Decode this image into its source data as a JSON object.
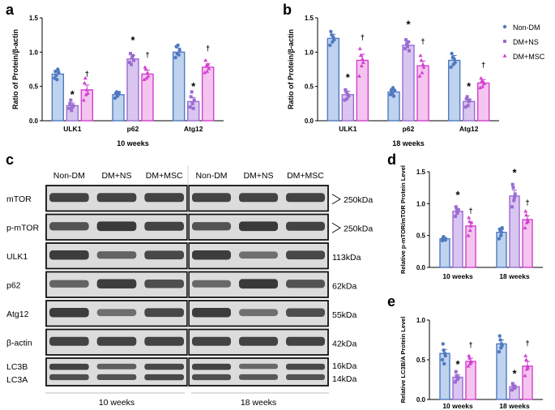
{
  "colors": {
    "nondm": "#4f79c0",
    "nondm_fill": "#bfd3ee",
    "dmns": "#9b6bd3",
    "dmns_fill": "#d9c6f0",
    "dmmsc": "#d43fd0",
    "dmmsc_fill": "#f4c5ef",
    "axis": "#000000",
    "blot_bg": "#dcdcdc",
    "band": "#2a2a2a"
  },
  "legend": {
    "entries": [
      {
        "label": "Non-DM",
        "marker": "circle",
        "key": "nondm"
      },
      {
        "label": "DM+NS",
        "marker": "square",
        "key": "dmns"
      },
      {
        "label": "DM+MSC",
        "marker": "triangle",
        "key": "dmmsc"
      }
    ],
    "placement": "top-right"
  },
  "chart_data": [
    {
      "panel": "a",
      "type": "bar",
      "ylabel": "Ratio of Protein/β-actin",
      "xtitle": "10 weeks",
      "categories": [
        "ULK1",
        "p62",
        "Atg12"
      ],
      "ylim": [
        0,
        1.5
      ],
      "yticks": [
        "0.0",
        "0.5",
        "1.0",
        "1.5"
      ],
      "series": [
        {
          "name": "Non-DM",
          "key": "nondm",
          "values": [
            0.68,
            0.38,
            1.0
          ],
          "err": [
            0.05,
            0.04,
            0.06
          ],
          "points": [
            [
              0.62,
              0.72,
              0.66,
              0.6,
              0.75,
              0.7
            ],
            [
              0.33,
              0.4,
              0.42,
              0.36,
              0.38,
              0.41
            ],
            [
              0.92,
              1.08,
              0.98,
              1.1,
              0.96,
              1.03
            ]
          ]
        },
        {
          "name": "DM+NS",
          "key": "dmns",
          "values": [
            0.22,
            0.9,
            0.28
          ],
          "err": [
            0.04,
            0.05,
            0.06
          ],
          "points": [
            [
              0.18,
              0.25,
              0.3,
              0.15,
              0.2,
              0.22
            ],
            [
              0.85,
              0.98,
              0.82,
              0.92,
              0.95,
              0.88
            ],
            [
              0.2,
              0.35,
              0.42,
              0.25,
              0.18,
              0.3
            ]
          ]
        },
        {
          "name": "DM+MSC",
          "key": "dmmsc",
          "values": [
            0.45,
            0.68,
            0.78
          ],
          "err": [
            0.07,
            0.06,
            0.05
          ],
          "points": [
            [
              0.3,
              0.55,
              0.62,
              0.38,
              0.45,
              0.4
            ],
            [
              0.6,
              0.78,
              0.75,
              0.62,
              0.7,
              0.65
            ],
            [
              0.7,
              0.88,
              0.8,
              0.72,
              0.82,
              0.76
            ]
          ]
        }
      ],
      "annotations": [
        {
          "text": "*",
          "cat": 0,
          "series": 1,
          "y": 0.33
        },
        {
          "text": "†",
          "cat": 0,
          "series": 2,
          "y": 0.65
        },
        {
          "text": "*",
          "cat": 1,
          "series": 1,
          "y": 1.12
        },
        {
          "text": "†",
          "cat": 1,
          "series": 2,
          "y": 0.93
        },
        {
          "text": "*",
          "cat": 2,
          "series": 1,
          "y": 0.45
        },
        {
          "text": "†",
          "cat": 2,
          "series": 2,
          "y": 1.02
        }
      ]
    },
    {
      "panel": "b",
      "type": "bar",
      "ylabel": "Ratio of Protein/β-actin",
      "xtitle": "18 weeks",
      "categories": [
        "ULK1",
        "p62",
        "Atg12"
      ],
      "ylim": [
        0,
        1.5
      ],
      "yticks": [
        "0.0",
        "0.5",
        "1.0",
        "1.5"
      ],
      "series": [
        {
          "name": "Non-DM",
          "key": "nondm",
          "values": [
            1.2,
            0.42,
            0.88
          ],
          "err": [
            0.06,
            0.04,
            0.07
          ],
          "points": [
            [
              1.1,
              1.3,
              1.25,
              1.15,
              1.22,
              1.18
            ],
            [
              0.38,
              0.45,
              0.4,
              0.48,
              0.36,
              0.44
            ],
            [
              0.78,
              0.98,
              0.92,
              0.82,
              0.9,
              0.85
            ]
          ]
        },
        {
          "name": "DM+NS",
          "key": "dmns",
          "values": [
            0.38,
            1.1,
            0.28
          ],
          "err": [
            0.05,
            0.05,
            0.04
          ],
          "points": [
            [
              0.3,
              0.45,
              0.42,
              0.32,
              0.38,
              0.36
            ],
            [
              1.05,
              1.18,
              1.12,
              1.08,
              1.15,
              1.02
            ],
            [
              0.2,
              0.32,
              0.35,
              0.22,
              0.28,
              0.3
            ]
          ]
        },
        {
          "name": "DM+MSC",
          "key": "dmmsc",
          "values": [
            0.88,
            0.8,
            0.55
          ],
          "err": [
            0.09,
            0.07,
            0.05
          ],
          "points": [
            [
              0.65,
              1.05,
              0.95,
              0.8,
              0.9,
              0.85
            ],
            [
              0.65,
              0.95,
              0.88,
              0.7,
              0.82,
              0.78
            ],
            [
              0.48,
              0.62,
              0.58,
              0.5,
              0.56,
              0.54
            ]
          ]
        }
      ],
      "annotations": [
        {
          "text": "*",
          "cat": 0,
          "series": 1,
          "y": 0.58
        },
        {
          "text": "†",
          "cat": 0,
          "series": 2,
          "y": 1.18
        },
        {
          "text": "*",
          "cat": 1,
          "series": 1,
          "y": 1.35
        },
        {
          "text": "†",
          "cat": 1,
          "series": 2,
          "y": 1.12
        },
        {
          "text": "*",
          "cat": 2,
          "series": 1,
          "y": 0.45
        },
        {
          "text": "†",
          "cat": 2,
          "series": 2,
          "y": 0.78
        }
      ]
    },
    {
      "panel": "d",
      "type": "bar",
      "ylabel": "Relative p-mTOR/mTOR Protein Level",
      "xtitle": "",
      "categories": [
        "10 weeks",
        "18 weeks"
      ],
      "ylim": [
        0,
        1.5
      ],
      "yticks": [
        "0.0",
        "0.5",
        "1.0",
        "1.5"
      ],
      "series": [
        {
          "name": "Non-DM",
          "key": "nondm",
          "values": [
            0.45,
            0.55
          ],
          "err": [
            0.02,
            0.04
          ],
          "points": [
            [
              0.42,
              0.46,
              0.48,
              0.44,
              0.45,
              0.43
            ],
            [
              0.45,
              0.6,
              0.58,
              0.5,
              0.55,
              0.62
            ]
          ]
        },
        {
          "name": "DM+NS",
          "key": "dmns",
          "values": [
            0.88,
            1.12
          ],
          "err": [
            0.04,
            0.09
          ],
          "points": [
            [
              0.8,
              0.95,
              0.92,
              0.85,
              0.88,
              0.9
            ],
            [
              0.95,
              1.3,
              1.25,
              1.05,
              1.1,
              1.15
            ]
          ]
        },
        {
          "name": "DM+MSC",
          "key": "dmmsc",
          "values": [
            0.65,
            0.75
          ],
          "err": [
            0.06,
            0.06
          ],
          "points": [
            [
              0.5,
              0.78,
              0.72,
              0.58,
              0.65,
              0.7
            ],
            [
              0.62,
              0.88,
              0.82,
              0.7,
              0.75,
              0.72
            ]
          ]
        }
      ],
      "annotations": [
        {
          "text": "*",
          "cat": 0,
          "series": 1,
          "y": 1.08
        },
        {
          "text": "†",
          "cat": 0,
          "series": 2,
          "y": 0.85
        },
        {
          "text": "*",
          "cat": 1,
          "series": 1,
          "y": 1.43
        },
        {
          "text": "†",
          "cat": 1,
          "series": 2,
          "y": 0.98
        }
      ]
    },
    {
      "panel": "e",
      "type": "bar",
      "ylabel": "Relative LC3B/A Protein Level",
      "xtitle": "",
      "categories": [
        "10 weeks",
        "18 weeks"
      ],
      "ylim": [
        0,
        1.0
      ],
      "yticks": [
        "0.0",
        "0.5",
        "1.0"
      ],
      "series": [
        {
          "name": "Non-DM",
          "key": "nondm",
          "values": [
            0.58,
            0.7
          ],
          "err": [
            0.05,
            0.05
          ],
          "points": [
            [
              0.5,
              0.7,
              0.62,
              0.45,
              0.58,
              0.55
            ],
            [
              0.6,
              0.8,
              0.75,
              0.65,
              0.7,
              0.68
            ]
          ]
        },
        {
          "name": "DM+NS",
          "key": "dmns",
          "values": [
            0.28,
            0.16
          ],
          "err": [
            0.03,
            0.02
          ],
          "points": [
            [
              0.22,
              0.35,
              0.3,
              0.25,
              0.28,
              0.27
            ],
            [
              0.12,
              0.2,
              0.18,
              0.14,
              0.16,
              0.15
            ]
          ]
        },
        {
          "name": "DM+MSC",
          "key": "dmmsc",
          "values": [
            0.48,
            0.42
          ],
          "err": [
            0.04,
            0.06
          ],
          "points": [
            [
              0.42,
              0.55,
              0.52,
              0.45,
              0.48,
              0.47
            ],
            [
              0.3,
              0.55,
              0.5,
              0.38,
              0.42,
              0.4
            ]
          ]
        }
      ],
      "annotations": [
        {
          "text": "*",
          "cat": 0,
          "series": 1,
          "y": 0.4
        },
        {
          "text": "†",
          "cat": 0,
          "series": 2,
          "y": 0.66
        },
        {
          "text": "*",
          "cat": 1,
          "series": 1,
          "y": 0.28
        },
        {
          "text": "†",
          "cat": 1,
          "series": 2,
          "y": 0.68
        }
      ]
    }
  ],
  "panel_c": {
    "label": "c",
    "columns": [
      "Non-DM",
      "DM+NS",
      "DM+MSC",
      "Non-DM",
      "DM+NS",
      "DM+MSC"
    ],
    "rows": [
      {
        "name": "mTOR",
        "size": "250kDa",
        "marker": true
      },
      {
        "name": "p-mTOR",
        "size": "250kDa",
        "marker": true
      },
      {
        "name": "ULK1",
        "size": "113kDa",
        "marker": false
      },
      {
        "name": "p62",
        "size": "62kDa",
        "marker": false
      },
      {
        "name": "Atg12",
        "size": "55kDa",
        "marker": false
      },
      {
        "name": "β-actin",
        "size": "42kDa",
        "marker": false
      }
    ],
    "lc3": {
      "name_top": "LC3B",
      "name_bottom": "LC3A",
      "size_top": "16kDa",
      "size_bottom": "14kDa"
    },
    "groups": [
      "10 weeks",
      "18 weeks"
    ],
    "band_intensity": [
      [
        0.85,
        0.85,
        0.85,
        0.85,
        0.85,
        0.85
      ],
      [
        0.7,
        0.95,
        0.85,
        0.7,
        0.95,
        0.85
      ],
      [
        0.9,
        0.55,
        0.8,
        0.9,
        0.45,
        0.8
      ],
      [
        0.55,
        0.9,
        0.75,
        0.5,
        0.95,
        0.7
      ],
      [
        0.9,
        0.45,
        0.8,
        0.9,
        0.45,
        0.75
      ],
      [
        0.85,
        0.85,
        0.85,
        0.85,
        0.85,
        0.85
      ]
    ],
    "lc3_intensity": [
      [
        0.85,
        0.6,
        0.8,
        0.85,
        0.5,
        0.8
      ],
      [
        0.75,
        0.7,
        0.8,
        0.75,
        0.65,
        0.7
      ]
    ]
  }
}
